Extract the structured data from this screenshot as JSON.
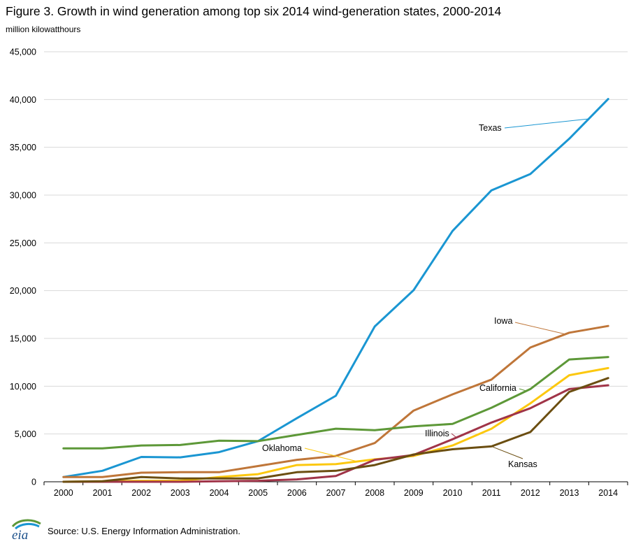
{
  "chart_data": {
    "type": "line",
    "title": "Figure 3. Growth in wind generation among top six 2014 wind-generation states, 2000-2014",
    "ylabel": "million kilowatthours",
    "ylim": [
      0,
      45000
    ],
    "yticks": [
      "0",
      "5,000",
      "10,000",
      "15,000",
      "20,000",
      "25,000",
      "30,000",
      "35,000",
      "40,000",
      "45,000"
    ],
    "categories": [
      "2000",
      "2001",
      "2002",
      "2003",
      "2004",
      "2005",
      "2006",
      "2007",
      "2008",
      "2009",
      "2010",
      "2011",
      "2012",
      "2013",
      "2014"
    ],
    "grid": true,
    "series": [
      {
        "name": "Texas",
        "color": "#1a96d2",
        "values": [
          500,
          1150,
          2600,
          2550,
          3100,
          4250,
          6650,
          9000,
          16250,
          20050,
          26250,
          30500,
          32200,
          35900,
          40050
        ]
      },
      {
        "name": "Iowa",
        "color": "#bf7639",
        "values": [
          500,
          500,
          950,
          1000,
          1000,
          1650,
          2300,
          2700,
          4050,
          7450,
          9150,
          10700,
          14050,
          15600,
          16300
        ]
      },
      {
        "name": "California",
        "color": "#5d9838",
        "values": [
          3500,
          3500,
          3800,
          3850,
          4300,
          4250,
          4900,
          5550,
          5400,
          5800,
          6050,
          7750,
          9700,
          12800,
          13050
        ]
      },
      {
        "name": "Oklahoma",
        "color": "#fcc80f",
        "values": [
          0,
          50,
          100,
          100,
          500,
          800,
          1750,
          1850,
          2350,
          2700,
          3800,
          5550,
          8200,
          11150,
          11900
        ]
      },
      {
        "name": "Illinois",
        "color": "#a03448",
        "values": [
          0,
          0,
          0,
          0,
          50,
          100,
          250,
          600,
          2300,
          2800,
          4450,
          6200,
          7700,
          9700,
          10100
        ]
      },
      {
        "name": "Kansas",
        "color": "#6b4e11",
        "values": [
          0,
          50,
          500,
          350,
          350,
          350,
          1000,
          1150,
          1750,
          2850,
          3400,
          3700,
          5200,
          9400,
          10850
        ]
      }
    ]
  },
  "source": "Source:  U.S. Energy Information Administration.",
  "logo_text": "eia"
}
